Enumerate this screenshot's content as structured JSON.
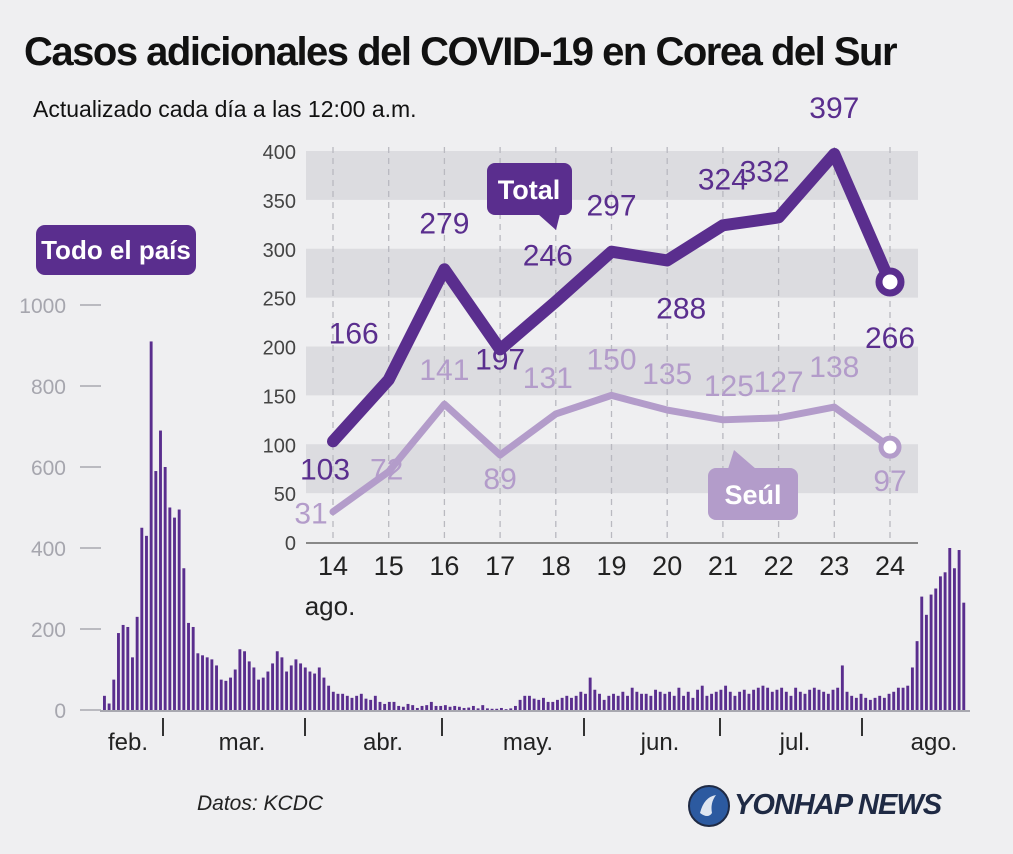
{
  "header": {
    "title": "Casos adicionales del COVID-19 en Corea del Sur",
    "subtitle": "Actualizado cada día a las 12:00 a.m."
  },
  "footer": {
    "source": "Datos: KCDC",
    "logo_text": "YONHAP NEWS"
  },
  "colors": {
    "total": "#5a2e8e",
    "seoul": "#b39cca",
    "bars": "#5a2e8e",
    "band": "#dcdce0",
    "axis": "#a8a8b0"
  },
  "chart_data": [
    {
      "type": "bar",
      "title": "Todo el país",
      "ylim": [
        0,
        1000
      ],
      "yticks": [
        0,
        200,
        400,
        600,
        800,
        1000
      ],
      "month_labels": [
        "feb.",
        "mar.",
        "abr.",
        "may.",
        "jun.",
        "jul.",
        "ago."
      ],
      "values": [
        35,
        16,
        75,
        190,
        210,
        205,
        130,
        230,
        450,
        430,
        910,
        590,
        690,
        600,
        500,
        475,
        495,
        350,
        215,
        205,
        140,
        135,
        130,
        125,
        110,
        75,
        72,
        80,
        100,
        150,
        145,
        120,
        105,
        75,
        80,
        95,
        115,
        145,
        130,
        95,
        110,
        125,
        115,
        105,
        95,
        90,
        105,
        80,
        60,
        45,
        40,
        40,
        35,
        30,
        35,
        40,
        28,
        25,
        35,
        20,
        15,
        20,
        20,
        10,
        8,
        15,
        12,
        5,
        10,
        12,
        20,
        10,
        10,
        12,
        8,
        10,
        8,
        5,
        6,
        10,
        4,
        12,
        4,
        3,
        3,
        5,
        2,
        4,
        10,
        25,
        35,
        35,
        28,
        25,
        30,
        20,
        20,
        25,
        30,
        35,
        30,
        35,
        45,
        40,
        80,
        50,
        40,
        25,
        35,
        40,
        35,
        45,
        35,
        55,
        45,
        40,
        40,
        35,
        50,
        45,
        40,
        45,
        35,
        55,
        35,
        45,
        30,
        50,
        60,
        35,
        40,
        45,
        50,
        60,
        45,
        35,
        45,
        50,
        40,
        50,
        55,
        60,
        55,
        45,
        50,
        55,
        45,
        35,
        55,
        45,
        40,
        50,
        55,
        50,
        45,
        40,
        50,
        55,
        110,
        45,
        35,
        30,
        40,
        30,
        25,
        30,
        35,
        30,
        40,
        45,
        55,
        55,
        60,
        105,
        170,
        280,
        235,
        285,
        300,
        330,
        340,
        400,
        350,
        395,
        265
      ]
    },
    {
      "type": "line",
      "x": [
        14,
        15,
        16,
        17,
        18,
        19,
        20,
        21,
        22,
        23,
        24
      ],
      "x_month_label": "ago.",
      "ylim": [
        0,
        400
      ],
      "yticks": [
        0,
        50,
        100,
        150,
        200,
        250,
        300,
        350,
        400
      ],
      "series": [
        {
          "name": "Total",
          "values": [
            103,
            166,
            279,
            197,
            246,
            297,
            288,
            324,
            332,
            397,
            266
          ]
        },
        {
          "name": "Seúl",
          "values": [
            31,
            72,
            141,
            89,
            131,
            150,
            135,
            125,
            127,
            138,
            97
          ]
        }
      ]
    }
  ]
}
